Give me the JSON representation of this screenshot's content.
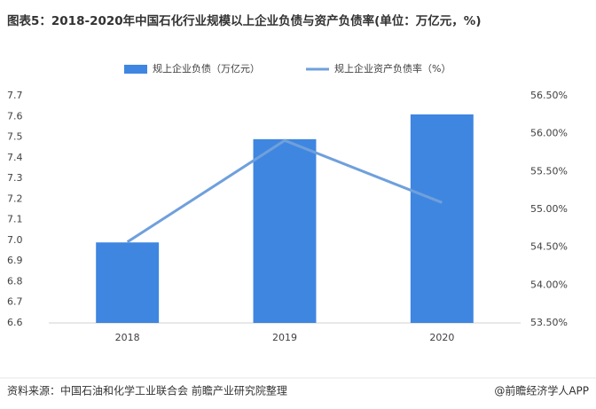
{
  "chart_data": {
    "type": "bar_line",
    "title": "图表5：2018-2020年中国石化行业规模以上企业负债与资产负债率(单位：万亿元，%)",
    "categories": [
      "2018",
      "2019",
      "2020"
    ],
    "series": [
      {
        "name": "规上企业负债（万亿元）",
        "type": "bar",
        "color": "#3f86e0",
        "values": [
          6.99,
          7.49,
          7.61
        ]
      },
      {
        "name": "规上企业资产负债率（%）",
        "type": "line",
        "axis": "y2",
        "color": "#6fa0dc",
        "values": [
          54.57,
          55.91,
          55.09
        ]
      }
    ],
    "ylim": [
      6.6,
      7.7
    ],
    "yticks": [
      6.6,
      6.7,
      6.8,
      6.9,
      {
        "value": 7,
        "label": "7.0"
      },
      7.1,
      7.2,
      7.3,
      7.4,
      7.5,
      7.6,
      7.7
    ],
    "y2lim": [
      53.5,
      56.5
    ],
    "y2ticks": [
      {
        "value": 53.5,
        "label": "53.50%"
      },
      {
        "value": 54,
        "label": "54.00%"
      },
      {
        "value": 54.5,
        "label": "54.50%"
      },
      {
        "value": 55,
        "label": "55.00%"
      },
      {
        "value": 55.5,
        "label": "55.50%"
      },
      {
        "value": 56,
        "label": "56.00%"
      },
      {
        "value": 56.5,
        "label": "56.50%"
      }
    ],
    "source": "资料来源：中国石油和化学工业联合会 前瞻产业研究院整理",
    "brand": "@前瞻经济学人APP"
  }
}
